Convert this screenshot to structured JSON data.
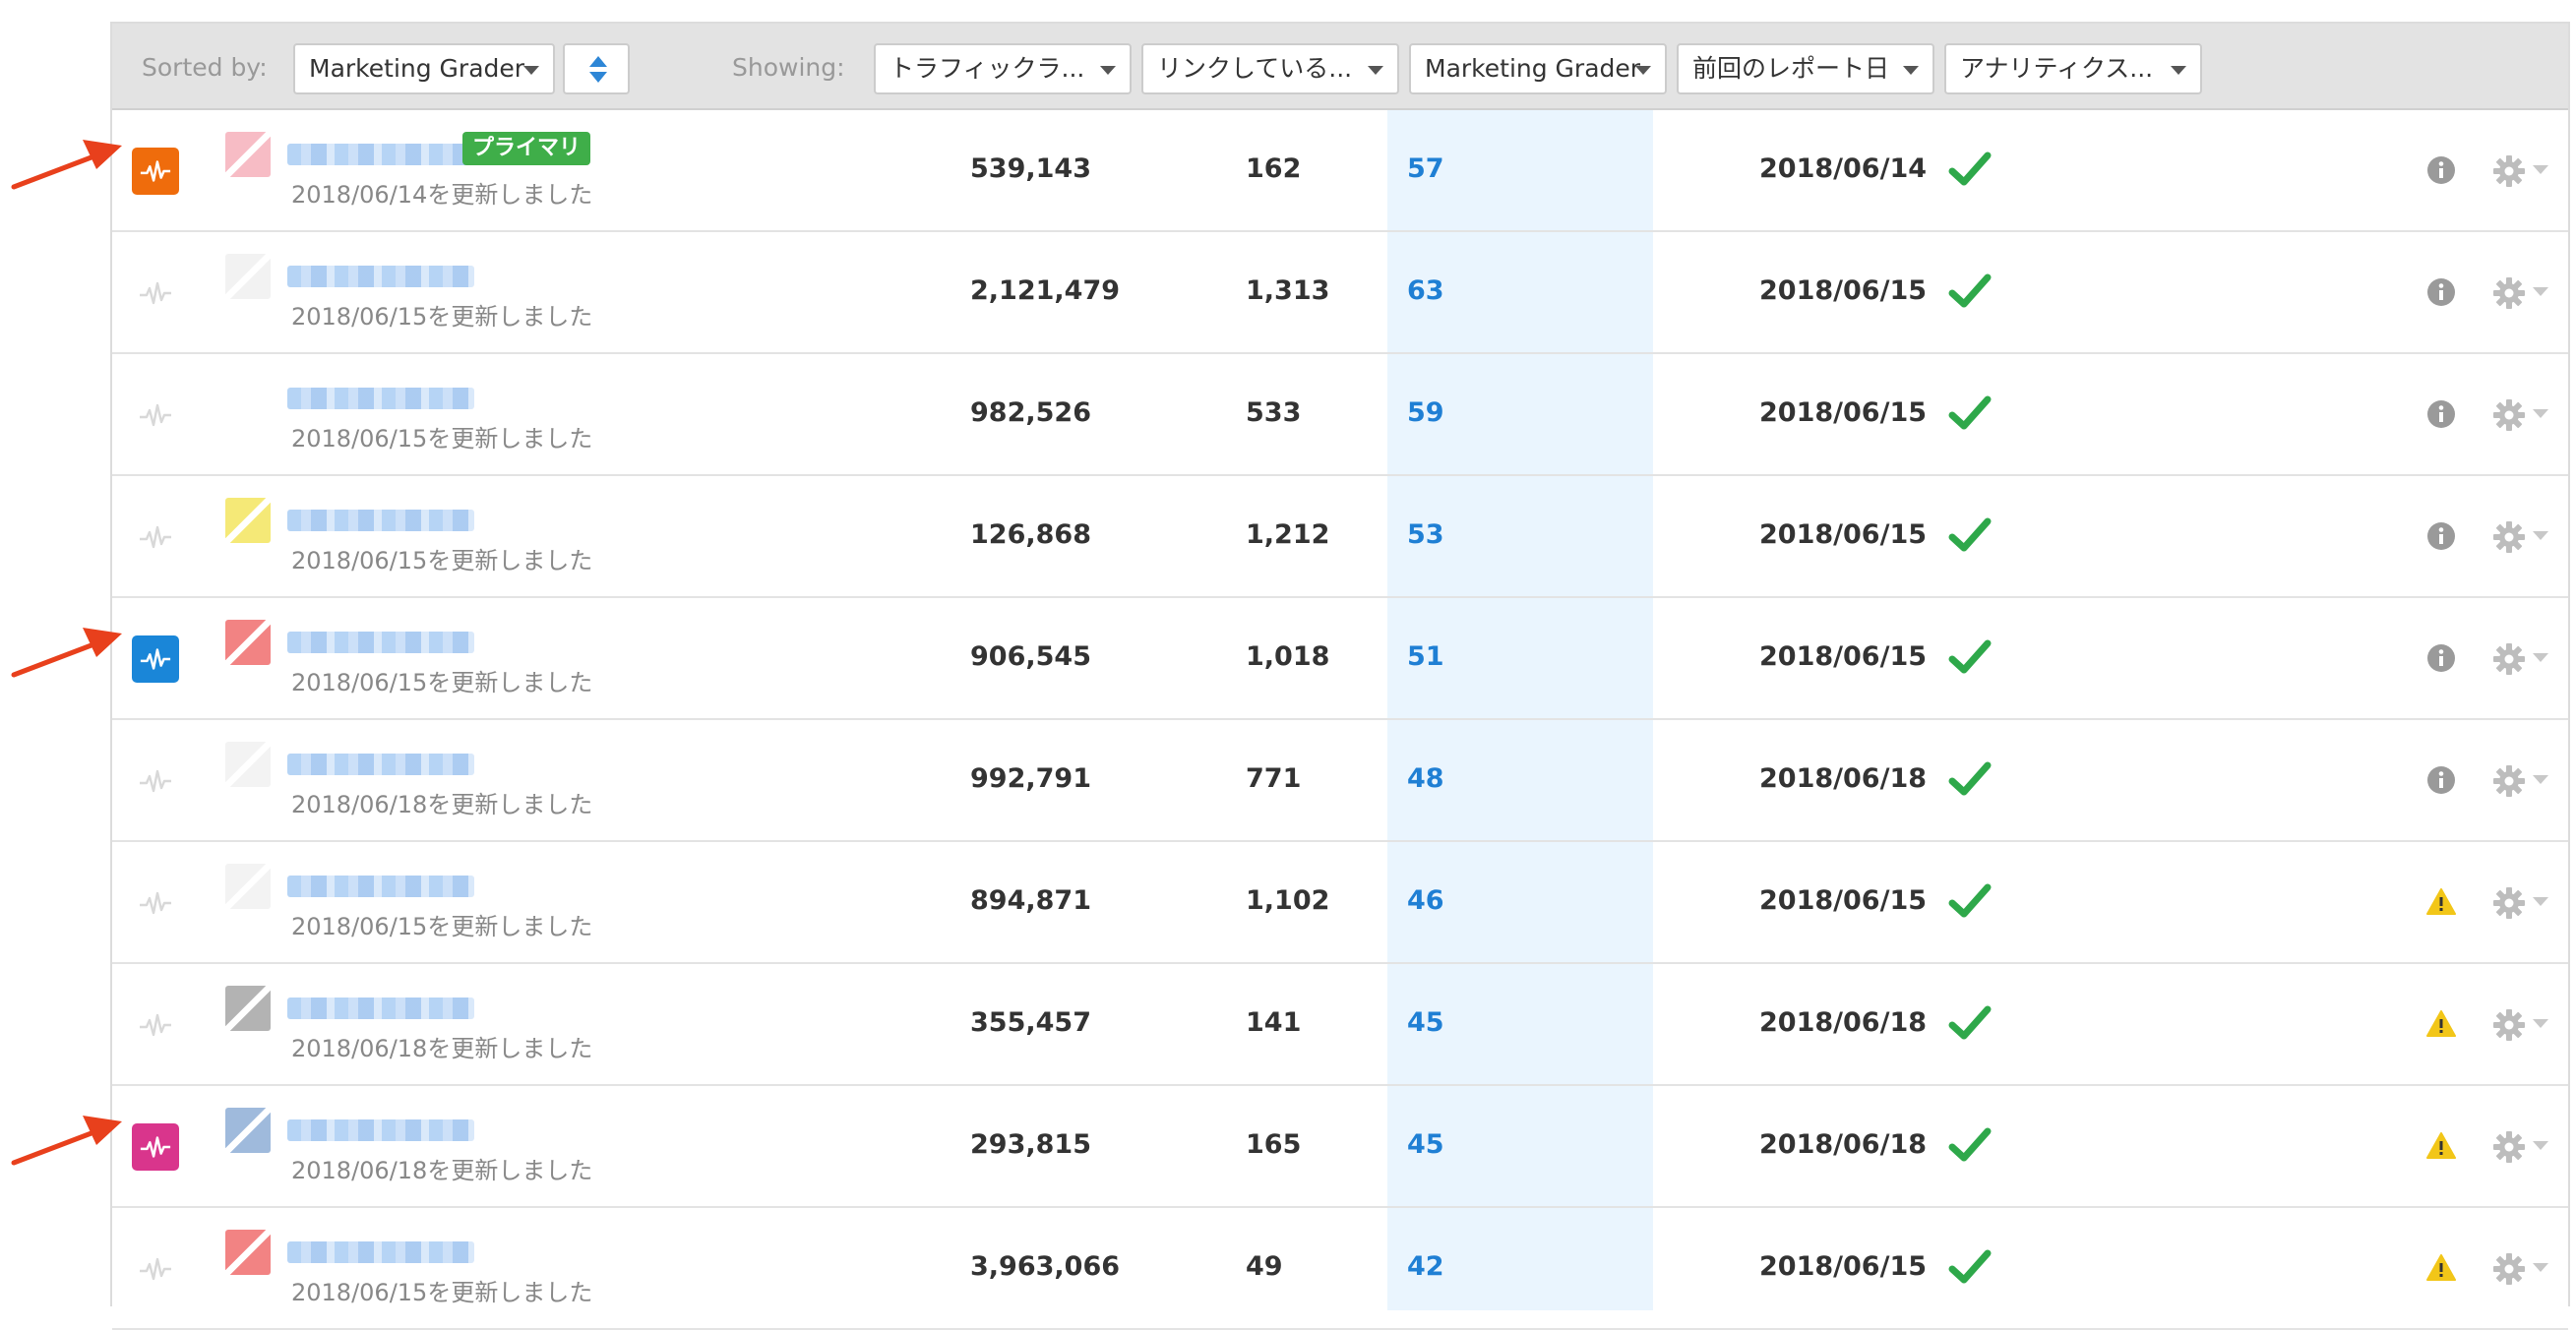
{
  "toolbar": {
    "sorted_by_label": "Sorted by:",
    "sort_select": "Marketing Grader",
    "showing_label": "Showing:",
    "columns": [
      "トラフィックラ...",
      "リンクしている...",
      "Marketing Grader",
      "前回のレポート日",
      "アナリティクス..."
    ]
  },
  "primary_badge": "プライマリ",
  "colors": {
    "accent": "#1f7fd4",
    "check": "#2ea84a",
    "warning": "#f2c618",
    "arrow": "#e8401c"
  },
  "rows": [
    {
      "updated": "2018/06/14を更新しました",
      "traffic": "539,143",
      "links": "162",
      "score": "57",
      "report_date": "2018/06/14",
      "status_icon": "info-icon",
      "badge_color": "#ef6c0c",
      "favicon": "#f4a6b2",
      "primary": true
    },
    {
      "updated": "2018/06/15を更新しました",
      "traffic": "2,121,479",
      "links": "1,313",
      "score": "63",
      "report_date": "2018/06/15",
      "status_icon": "info-icon",
      "badge_color": null,
      "favicon": "#eeeeee",
      "primary": false
    },
    {
      "updated": "2018/06/15を更新しました",
      "traffic": "982,526",
      "links": "533",
      "score": "59",
      "report_date": "2018/06/15",
      "status_icon": "info-icon",
      "badge_color": null,
      "favicon": null,
      "primary": false
    },
    {
      "updated": "2018/06/15を更新しました",
      "traffic": "126,868",
      "links": "1,212",
      "score": "53",
      "report_date": "2018/06/15",
      "status_icon": "info-icon",
      "badge_color": null,
      "favicon": "#f2e24a",
      "primary": false
    },
    {
      "updated": "2018/06/15を更新しました",
      "traffic": "906,545",
      "links": "1,018",
      "score": "51",
      "report_date": "2018/06/15",
      "status_icon": "info-icon",
      "badge_color": "#1a86d8",
      "favicon": "#ee5a5a",
      "primary": false
    },
    {
      "updated": "2018/06/18を更新しました",
      "traffic": "992,791",
      "links": "771",
      "score": "48",
      "report_date": "2018/06/18",
      "status_icon": "info-icon",
      "badge_color": null,
      "favicon": "#efefef",
      "primary": false
    },
    {
      "updated": "2018/06/15を更新しました",
      "traffic": "894,871",
      "links": "1,102",
      "score": "46",
      "report_date": "2018/06/15",
      "status_icon": "warning-icon",
      "badge_color": null,
      "favicon": "#efefef",
      "primary": false
    },
    {
      "updated": "2018/06/18を更新しました",
      "traffic": "355,457",
      "links": "141",
      "score": "45",
      "report_date": "2018/06/18",
      "status_icon": "warning-icon",
      "badge_color": null,
      "favicon": "#9a9a9a",
      "primary": false
    },
    {
      "updated": "2018/06/18を更新しました",
      "traffic": "293,815",
      "links": "165",
      "score": "45",
      "report_date": "2018/06/18",
      "status_icon": "warning-icon",
      "badge_color": "#d9358c",
      "favicon": "#7fa3d0",
      "primary": false
    },
    {
      "updated": "2018/06/15を更新しました",
      "traffic": "3,963,066",
      "links": "49",
      "score": "42",
      "report_date": "2018/06/15",
      "status_icon": "warning-icon",
      "badge_color": null,
      "favicon": "#ee5a5a",
      "primary": false
    }
  ]
}
